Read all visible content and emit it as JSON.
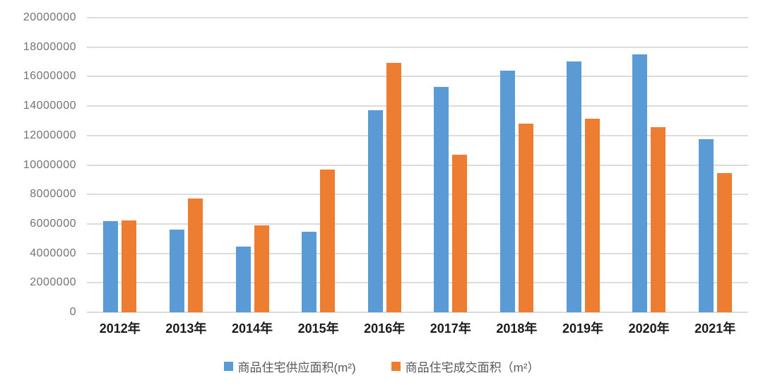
{
  "chart_data": {
    "type": "bar",
    "title": "",
    "categories": [
      "2012年",
      "2013年",
      "2014年",
      "2015年",
      "2016年",
      "2017年",
      "2018年",
      "2019年",
      "2020年",
      "2021年"
    ],
    "series": [
      {
        "name": "商品住宅供应面积(m²)",
        "color": "#5B9BD5",
        "values": [
          6200000,
          5600000,
          4450000,
          5450000,
          13700000,
          15300000,
          16400000,
          17050000,
          17500000,
          11750000
        ]
      },
      {
        "name": "商品住宅成交面积（m²）",
        "color": "#ED7D31",
        "values": [
          6250000,
          7700000,
          5900000,
          9700000,
          16950000,
          10700000,
          12800000,
          13150000,
          12550000,
          9450000
        ]
      }
    ],
    "ylim": [
      0,
      20000000
    ],
    "ytick_step": 2000000,
    "ytick_labels": [
      "0",
      "2000000",
      "4000000",
      "6000000",
      "8000000",
      "10000000",
      "12000000",
      "14000000",
      "16000000",
      "18000000",
      "20000000"
    ],
    "xlabel": "",
    "ylabel": "",
    "grid": true,
    "legend_position": "bottom"
  },
  "colors": {
    "series_supply": "#5B9BD5",
    "series_transaction": "#ED7D31",
    "gridline": "#dcdcdc",
    "y_axis_text": "#737373",
    "x_axis_text": "#1a1a1a",
    "legend_text": "#595959",
    "background": "#ffffff"
  }
}
